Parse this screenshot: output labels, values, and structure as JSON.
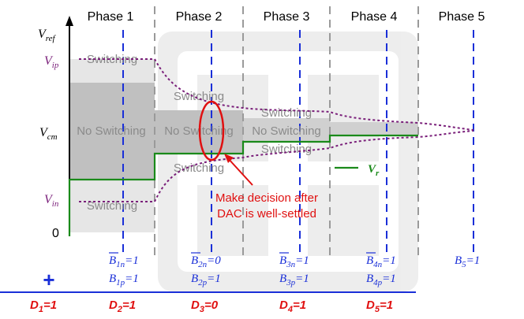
{
  "phases": [
    "Phase 1",
    "Phase 2",
    "Phase 3",
    "Phase 4",
    "Phase 5"
  ],
  "axis_labels": {
    "vref": {
      "main": "V",
      "sub": "ref"
    },
    "vip": {
      "main": "V",
      "sub": "ip"
    },
    "vcm": {
      "main": "V",
      "sub": "cm"
    },
    "vin": {
      "main": "V",
      "sub": "in"
    },
    "zero": "0"
  },
  "regions": {
    "switching": "Switching",
    "no_switching": "No Switching"
  },
  "bits": {
    "p1": {
      "n": {
        "base": "B",
        "sub": "1n",
        "val": "=1"
      },
      "p": {
        "base": "B",
        "sub": "1p",
        "val": "=1"
      }
    },
    "p2": {
      "n": {
        "base": "B",
        "sub": "2n",
        "val": "=0"
      },
      "p": {
        "base": "B",
        "sub": "2p",
        "val": "=1"
      }
    },
    "p3": {
      "n": {
        "base": "B",
        "sub": "3n",
        "val": "=1"
      },
      "p": {
        "base": "B",
        "sub": "3p",
        "val": "=1"
      }
    },
    "p4": {
      "n": {
        "base": "B",
        "sub": "4n",
        "val": "=1"
      },
      "p": {
        "base": "B",
        "sub": "4p",
        "val": "=1"
      }
    },
    "p5": {
      "base": "B",
      "sub": "5",
      "val": "=1"
    }
  },
  "decisions": [
    {
      "base": "D",
      "sub": "1",
      "val": "=1"
    },
    {
      "base": "D",
      "sub": "2",
      "val": "=1"
    },
    {
      "base": "D",
      "sub": "3",
      "val": "=0"
    },
    {
      "base": "D",
      "sub": "4",
      "val": "=1"
    },
    {
      "base": "D",
      "sub": "5",
      "val": "=1"
    }
  ],
  "annotation": {
    "line1": "Make decision after",
    "line2": "DAC is well-settled"
  },
  "legend": {
    "main": "V",
    "sub": "r"
  },
  "plus_symbol": "+",
  "colors": {
    "blue": "#1a2fd8",
    "red": "#e01010",
    "green": "#1a8a1a",
    "purple": "#7a1f7a",
    "gray_dash": "#9a9a9a",
    "light_gray": "#e6e6e6",
    "mid_gray": "#c0c0c0",
    "text_gray": "#8a8a8a"
  }
}
